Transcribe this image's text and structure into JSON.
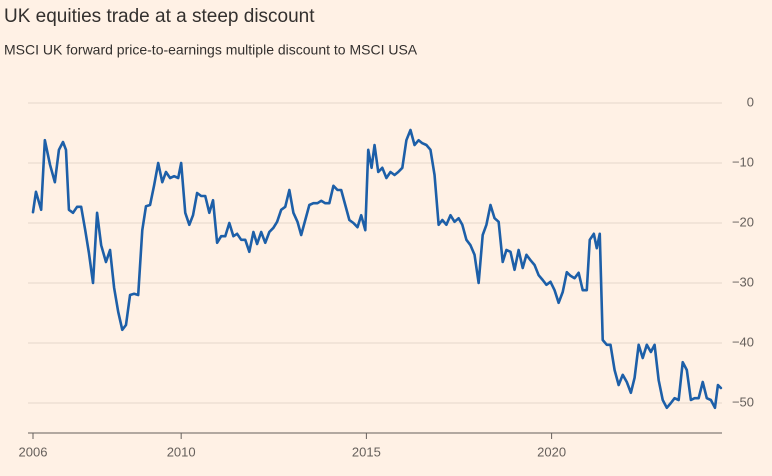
{
  "chart_data": {
    "type": "line",
    "title": "UK equities trade at a steep discount",
    "subtitle": "MSCI UK forward price-to-earnings multiple discount to MSCI USA",
    "xlim": [
      2006,
      2024.6
    ],
    "xticks": [
      2006,
      2010,
      2015,
      2020
    ],
    "ylim": [
      -55,
      0
    ],
    "yticks": [
      0,
      {
        "value": -10,
        "label": "−10"
      },
      {
        "value": -20,
        "label": "−20"
      },
      {
        "value": -30,
        "label": "−30"
      },
      {
        "value": -40,
        "label": "−40"
      },
      {
        "value": -50,
        "label": "−50"
      }
    ],
    "grid": true,
    "x": [
      2006.0,
      2006.08,
      2006.22,
      2006.32,
      2006.46,
      2006.59,
      2006.7,
      2006.81,
      2006.89,
      2006.97,
      2007.08,
      2007.19,
      2007.3,
      2007.41,
      2007.51,
      2007.62,
      2007.73,
      2007.84,
      2007.97,
      2008.08,
      2008.19,
      2008.3,
      2008.41,
      2008.51,
      2008.62,
      2008.73,
      2008.84,
      2008.95,
      2009.05,
      2009.16,
      2009.27,
      2009.38,
      2009.49,
      2009.59,
      2009.7,
      2009.81,
      2009.92,
      2010.0,
      2010.11,
      2010.22,
      2010.32,
      2010.43,
      2010.54,
      2010.65,
      2010.76,
      2010.86,
      2010.97,
      2011.08,
      2011.19,
      2011.3,
      2011.41,
      2011.51,
      2011.62,
      2011.73,
      2011.84,
      2011.95,
      2012.05,
      2012.16,
      2012.27,
      2012.38,
      2012.49,
      2012.59,
      2012.7,
      2012.81,
      2012.92,
      2013.03,
      2013.14,
      2013.24,
      2013.35,
      2013.46,
      2013.57,
      2013.68,
      2013.78,
      2013.89,
      2014.0,
      2014.11,
      2014.22,
      2014.32,
      2014.43,
      2014.54,
      2014.65,
      2014.76,
      2014.86,
      2014.97,
      2015.05,
      2015.14,
      2015.22,
      2015.32,
      2015.43,
      2015.54,
      2015.65,
      2015.76,
      2015.86,
      2015.97,
      2016.08,
      2016.19,
      2016.3,
      2016.41,
      2016.51,
      2016.62,
      2016.73,
      2016.84,
      2016.95,
      2017.05,
      2017.16,
      2017.27,
      2017.38,
      2017.49,
      2017.59,
      2017.7,
      2017.81,
      2017.92,
      2018.03,
      2018.14,
      2018.24,
      2018.35,
      2018.46,
      2018.57,
      2018.68,
      2018.78,
      2018.89,
      2019.0,
      2019.11,
      2019.22,
      2019.32,
      2019.43,
      2019.54,
      2019.65,
      2019.76,
      2019.86,
      2019.97,
      2020.08,
      2020.19,
      2020.3,
      2020.41,
      2020.51,
      2020.62,
      2020.73,
      2020.84,
      2020.95,
      2021.03,
      2021.14,
      2021.22,
      2021.3,
      2021.38,
      2021.49,
      2021.59,
      2021.7,
      2021.81,
      2021.92,
      2022.03,
      2022.14,
      2022.24,
      2022.35,
      2022.46,
      2022.57,
      2022.68,
      2022.78,
      2022.89,
      2023.0,
      2023.11,
      2023.22,
      2023.32,
      2023.43,
      2023.54,
      2023.65,
      2023.76,
      2023.86,
      2023.97,
      2024.08,
      2024.19,
      2024.3,
      2024.41,
      2024.49,
      2024.57
    ],
    "series": [
      {
        "color": "#1d5fa8",
        "values": [
          -18.2,
          -14.8,
          -17.8,
          -6.2,
          -10.3,
          -13.2,
          -7.8,
          -6.5,
          -7.8,
          -17.8,
          -18.3,
          -17.3,
          -17.3,
          -21.2,
          -25,
          -30,
          -18.3,
          -23.7,
          -26.5,
          -24.5,
          -30.8,
          -34.8,
          -37.8,
          -37,
          -32,
          -31.8,
          -32,
          -21.2,
          -17.2,
          -17,
          -13.7,
          -10,
          -13.2,
          -11.5,
          -12.5,
          -12.2,
          -12.5,
          -10,
          -18.3,
          -20.3,
          -18.7,
          -15,
          -15.5,
          -15.5,
          -18.3,
          -16.2,
          -23.3,
          -22.2,
          -22.2,
          -20,
          -22.2,
          -21.8,
          -22.8,
          -22.8,
          -24.8,
          -21.5,
          -23.5,
          -21.5,
          -23.3,
          -21.5,
          -20.8,
          -19.8,
          -17.8,
          -17.3,
          -14.5,
          -18.3,
          -19.8,
          -22,
          -19.5,
          -17,
          -16.7,
          -16.7,
          -16.3,
          -16.7,
          -16.7,
          -13.8,
          -14.5,
          -14.5,
          -17,
          -19.5,
          -20,
          -20.7,
          -18.7,
          -21.2,
          -7.8,
          -10.8,
          -7,
          -11.5,
          -10.8,
          -12.5,
          -11.5,
          -12,
          -11.5,
          -10.8,
          -6.2,
          -4.5,
          -7,
          -6.2,
          -6.7,
          -7,
          -7.8,
          -12,
          -20.3,
          -19.5,
          -20.3,
          -18.7,
          -19.8,
          -19.2,
          -20.3,
          -22.8,
          -23.7,
          -25.3,
          -30,
          -22,
          -20.3,
          -17,
          -19.2,
          -19.8,
          -26.5,
          -24.5,
          -24.8,
          -27.8,
          -24.5,
          -27.5,
          -25.3,
          -26.2,
          -27,
          -28.7,
          -29.5,
          -30.3,
          -29.8,
          -31.2,
          -33.3,
          -31.5,
          -28.2,
          -28.8,
          -29.2,
          -28.3,
          -31.2,
          -31.2,
          -22.8,
          -21.8,
          -24.2,
          -21.8,
          -39.5,
          -40.3,
          -40.3,
          -44.5,
          -47,
          -45.3,
          -46.5,
          -48.3,
          -45.8,
          -40.3,
          -42.5,
          -40.3,
          -41.5,
          -40.3,
          -46.2,
          -49.5,
          -50.8,
          -50,
          -49.2,
          -49.5,
          -43.2,
          -44.5,
          -49.5,
          -49.2,
          -49.2,
          -46.5,
          -49.2,
          -49.5,
          -50.8,
          -47,
          -47.5
        ]
      }
    ]
  }
}
